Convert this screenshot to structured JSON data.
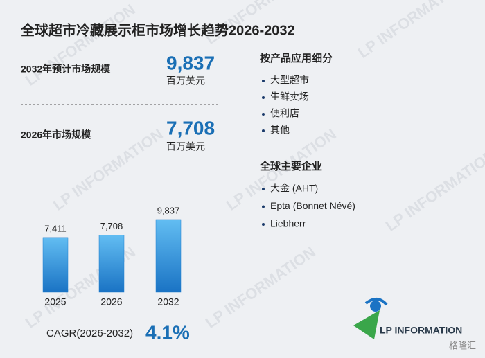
{
  "title": "全球超市冷藏展示柜市场增长趋势2026-2032",
  "stats": [
    {
      "label": "2032年预计市场规模",
      "value": "9,837",
      "unit": "百万美元"
    },
    {
      "label": "2026年市场规模",
      "value": "7,708",
      "unit": "百万美元"
    }
  ],
  "segments": {
    "title": "按产品应用细分",
    "items": [
      "大型超市",
      "生鲜卖场",
      "便利店",
      "其他"
    ]
  },
  "companies": {
    "title": "全球主要企业",
    "items": [
      "大金 (AHT)",
      "Epta (Bonnet Névé)",
      "Liebherr"
    ]
  },
  "chart_data": {
    "type": "bar",
    "categories": [
      "2025",
      "2026",
      "2032"
    ],
    "values": [
      7411,
      7708,
      9837
    ],
    "value_labels": [
      "7,411",
      "7,708",
      "9,837"
    ],
    "color": "#1f7fd0"
  },
  "cagr": {
    "label": "CAGR(2026-2032)",
    "value": "4.1%"
  },
  "logo": "LP INFORMATION",
  "source_mark": "格隆汇"
}
